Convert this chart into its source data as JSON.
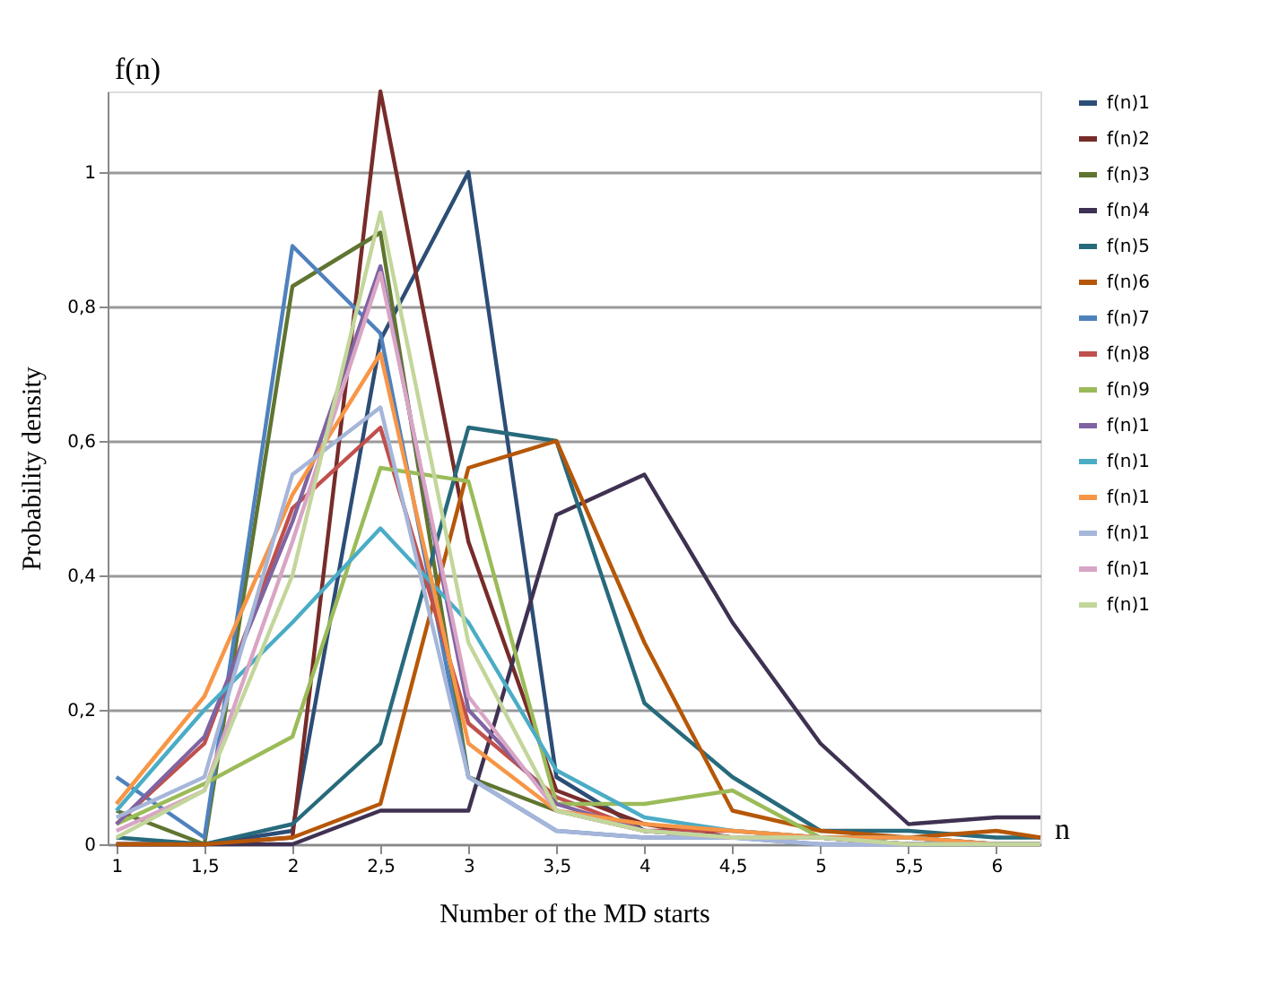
{
  "chart_data": {
    "type": "line",
    "xlabel": "Number of the MD starts",
    "ylabel": "Probability density",
    "annotations": [
      "f(n)",
      "n"
    ],
    "x": [
      1,
      1.5,
      2,
      2.5,
      3,
      3.5,
      4,
      4.5,
      5,
      5.5,
      6,
      6.25
    ],
    "xlim": [
      0.95,
      6.25
    ],
    "xticks": [
      1,
      {
        "value": 1.5,
        "label": "1,5"
      },
      2,
      {
        "value": 2.5,
        "label": "2,5"
      },
      3,
      {
        "value": 3.5,
        "label": "3,5"
      },
      4,
      {
        "value": 4.5,
        "label": "4,5"
      },
      5,
      {
        "value": 5.5,
        "label": "5,5"
      },
      6
    ],
    "ylim": [
      0,
      1.12
    ],
    "yticks": [
      0,
      {
        "value": 0.2,
        "label": "0,2"
      },
      {
        "value": 0.4,
        "label": "0,4"
      },
      {
        "value": 0.6,
        "label": "0,6"
      },
      {
        "value": 0.8,
        "label": "0,8"
      },
      1
    ],
    "grid": "y",
    "legend": "right",
    "line_style": "solid",
    "marker": "none",
    "series": [
      {
        "name": "f(n)1",
        "color": "#2c4d75",
        "values": [
          0.0,
          0.0,
          0.02,
          0.75,
          1.0,
          0.1,
          0.02,
          0.01,
          0.01,
          0.0,
          0.0,
          0.0
        ]
      },
      {
        "name": "f(n)2",
        "color": "#772c2a",
        "values": [
          0.0,
          0.0,
          0.01,
          1.12,
          0.45,
          0.08,
          0.03,
          0.01,
          0.01,
          0.0,
          0.0,
          0.0
        ]
      },
      {
        "name": "f(n)3",
        "color": "#5f7530",
        "values": [
          0.05,
          0.0,
          0.83,
          0.91,
          0.1,
          0.05,
          0.02,
          0.01,
          0.01,
          0.0,
          0.0,
          0.0
        ]
      },
      {
        "name": "f(n)4",
        "color": "#3f3151",
        "values": [
          0.0,
          0.0,
          0.0,
          0.05,
          0.05,
          0.49,
          0.55,
          0.33,
          0.15,
          0.03,
          0.04,
          0.04
        ]
      },
      {
        "name": "f(n)5",
        "color": "#276a7c",
        "values": [
          0.01,
          0.0,
          0.03,
          0.15,
          0.62,
          0.6,
          0.21,
          0.1,
          0.02,
          0.02,
          0.01,
          0.01
        ]
      },
      {
        "name": "f(n)6",
        "color": "#b65708",
        "values": [
          0.0,
          0.0,
          0.01,
          0.06,
          0.56,
          0.6,
          0.3,
          0.05,
          0.02,
          0.01,
          0.02,
          0.01
        ]
      },
      {
        "name": "f(n)7",
        "color": "#4f81bd",
        "values": [
          0.1,
          0.01,
          0.89,
          0.76,
          0.1,
          0.02,
          0.01,
          0.01,
          0.0,
          0.0,
          0.0,
          0.0
        ]
      },
      {
        "name": "f(n)8",
        "color": "#c0504d",
        "values": [
          0.03,
          0.15,
          0.5,
          0.62,
          0.18,
          0.07,
          0.02,
          0.02,
          0.01,
          0.01,
          0.0,
          0.0
        ]
      },
      {
        "name": "f(n)9",
        "color": "#9bbb59",
        "values": [
          0.03,
          0.09,
          0.16,
          0.56,
          0.54,
          0.06,
          0.06,
          0.08,
          0.01,
          0.01,
          0.0,
          0.0
        ]
      },
      {
        "name": "f(n)1",
        "color": "#8064a2",
        "values": [
          0.03,
          0.16,
          0.48,
          0.86,
          0.2,
          0.06,
          0.02,
          0.01,
          0.01,
          0.01,
          0.0,
          0.0
        ]
      },
      {
        "name": "f(n)1",
        "color": "#4bacc6",
        "values": [
          0.05,
          0.2,
          0.33,
          0.47,
          0.33,
          0.11,
          0.04,
          0.02,
          0.01,
          0.01,
          0.0,
          0.0
        ]
      },
      {
        "name": "f(n)1",
        "color": "#f79646",
        "values": [
          0.06,
          0.22,
          0.52,
          0.73,
          0.15,
          0.05,
          0.03,
          0.02,
          0.01,
          0.01,
          0.0,
          0.0
        ]
      },
      {
        "name": "f(n)1",
        "color": "#a5b6d9",
        "values": [
          0.04,
          0.1,
          0.55,
          0.65,
          0.1,
          0.02,
          0.01,
          0.01,
          0.0,
          0.0,
          0.0,
          0.0
        ]
      },
      {
        "name": "f(n)1",
        "color": "#d9a5c4",
        "values": [
          0.02,
          0.08,
          0.45,
          0.85,
          0.22,
          0.05,
          0.02,
          0.01,
          0.01,
          0.0,
          0.0,
          0.0
        ]
      },
      {
        "name": "f(n)1",
        "color": "#c3d69b",
        "values": [
          0.01,
          0.08,
          0.4,
          0.94,
          0.3,
          0.05,
          0.02,
          0.01,
          0.01,
          0.0,
          0.0,
          0.0
        ]
      }
    ]
  }
}
